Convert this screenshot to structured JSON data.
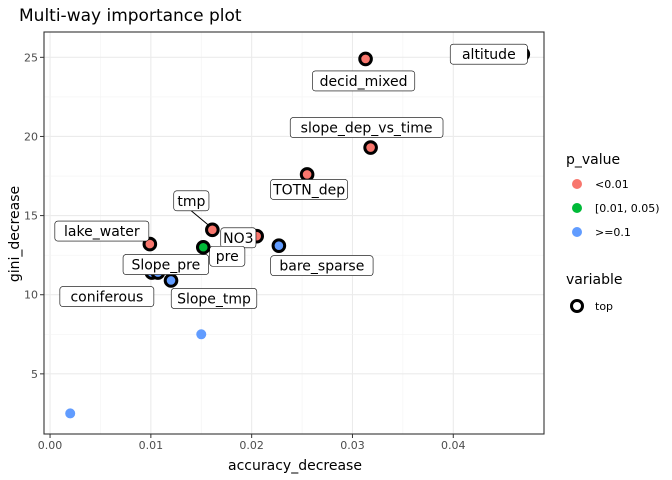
{
  "chart_data": {
    "type": "scatter",
    "title": "Multi-way importance plot",
    "xlabel": "accuracy_decrease",
    "ylabel": "gini_decrease",
    "xlim": [
      -0.0006,
      0.049
    ],
    "ylim": [
      1.2,
      26.6
    ],
    "x_ticks": [
      0.0,
      0.01,
      0.02,
      0.03,
      0.04
    ],
    "x_tick_labels": [
      "0.00",
      "0.01",
      "0.02",
      "0.03",
      "0.04"
    ],
    "y_ticks": [
      5,
      10,
      15,
      20,
      25
    ],
    "y_tick_labels": [
      "5",
      "10",
      "15",
      "20",
      "25"
    ],
    "grid": true,
    "colors": {
      "lt001": "#F8766D",
      "mid": "#00BA38",
      "ge01": "#619CFF"
    },
    "points": [
      {
        "x": 0.0469,
        "y": 25.2,
        "p": "lt001",
        "top": true
      },
      {
        "x": 0.0313,
        "y": 24.9,
        "p": "lt001",
        "top": true
      },
      {
        "x": 0.0318,
        "y": 19.3,
        "p": "lt001",
        "top": true
      },
      {
        "x": 0.0255,
        "y": 17.6,
        "p": "lt001",
        "top": true
      },
      {
        "x": 0.0161,
        "y": 14.1,
        "p": "lt001",
        "top": true
      },
      {
        "x": 0.0205,
        "y": 13.7,
        "p": "lt001",
        "top": true
      },
      {
        "x": 0.0227,
        "y": 13.1,
        "p": "ge01",
        "top": true
      },
      {
        "x": 0.0099,
        "y": 13.2,
        "p": "lt001",
        "top": true
      },
      {
        "x": 0.0152,
        "y": 13.0,
        "p": "mid",
        "top": true
      },
      {
        "x": 0.0101,
        "y": 11.4,
        "p": "ge01",
        "top": true
      },
      {
        "x": 0.0107,
        "y": 11.4,
        "p": "ge01",
        "top": true
      },
      {
        "x": 0.012,
        "y": 10.9,
        "p": "ge01",
        "top": true
      },
      {
        "x": 0.0081,
        "y": 11.7,
        "p": "ge01",
        "top": false
      },
      {
        "x": 0.015,
        "y": 7.5,
        "p": "ge01",
        "top": false
      },
      {
        "x": 0.002,
        "y": 2.5,
        "p": "ge01",
        "top": false
      }
    ],
    "labels": [
      {
        "text": "altitude",
        "x": 0.0469,
        "y": 25.2
      },
      {
        "text": "decid_mixed",
        "x": 0.0313,
        "y": 24.9
      },
      {
        "text": "slope_dep_vs_time",
        "x": 0.0318,
        "y": 19.3
      },
      {
        "text": "TOTN_dep",
        "x": 0.0255,
        "y": 17.6
      },
      {
        "text": "tmp",
        "x": 0.0161,
        "y": 14.1
      },
      {
        "text": "NO3",
        "x": 0.0161,
        "y": 14.1
      },
      {
        "text": "pre",
        "x": 0.0152,
        "y": 13.0
      },
      {
        "text": "lake_water",
        "x": 0.0099,
        "y": 13.2
      },
      {
        "text": "bare_sparse",
        "x": 0.0227,
        "y": 13.1
      },
      {
        "text": "Slope_pre",
        "x": 0.0101,
        "y": 11.4
      },
      {
        "text": "coniferous",
        "x": 0.0101,
        "y": 11.4
      },
      {
        "text": "Slope_tmp",
        "x": 0.012,
        "y": 10.9
      }
    ],
    "legend": {
      "placement": "right",
      "p_title": "p_value",
      "p_entries": [
        {
          "key": "lt001",
          "label": "<0.01"
        },
        {
          "key": "mid",
          "label": "[0.01, 0.05)"
        },
        {
          "key": "ge01",
          "label": ">=0.1"
        }
      ],
      "var_title": "variable",
      "var_entries": [
        {
          "label": "top"
        }
      ]
    }
  }
}
